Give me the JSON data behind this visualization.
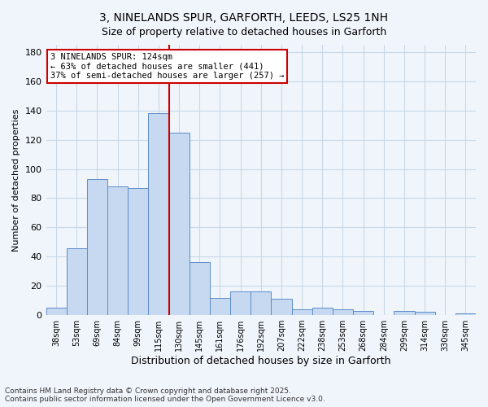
{
  "title_line1": "3, NINELANDS SPUR, GARFORTH, LEEDS, LS25 1NH",
  "title_line2": "Size of property relative to detached houses in Garforth",
  "xlabel": "Distribution of detached houses by size in Garforth",
  "ylabel": "Number of detached properties",
  "categories": [
    "38sqm",
    "53sqm",
    "69sqm",
    "84sqm",
    "99sqm",
    "115sqm",
    "130sqm",
    "145sqm",
    "161sqm",
    "176sqm",
    "192sqm",
    "207sqm",
    "222sqm",
    "238sqm",
    "253sqm",
    "268sqm",
    "284sqm",
    "299sqm",
    "314sqm",
    "330sqm",
    "345sqm"
  ],
  "values": [
    5,
    46,
    93,
    88,
    87,
    138,
    125,
    36,
    12,
    16,
    16,
    11,
    4,
    5,
    4,
    3,
    0,
    3,
    2,
    0,
    1
  ],
  "bar_color": "#c6d9f0",
  "bar_edge_color": "#5b8cc8",
  "vline_x": 6,
  "vline_color": "#cc0000",
  "annotation_text": "3 NINELANDS SPUR: 124sqm\n← 63% of detached houses are smaller (441)\n37% of semi-detached houses are larger (257) →",
  "annotation_box_color": "#ffffff",
  "annotation_box_edge": "#cc0000",
  "ylim": [
    0,
    185
  ],
  "yticks": [
    0,
    20,
    40,
    60,
    80,
    100,
    120,
    140,
    160,
    180
  ],
  "grid_color": "#c8d8e8",
  "footnote": "Contains HM Land Registry data © Crown copyright and database right 2025.\nContains public sector information licensed under the Open Government Licence v3.0.",
  "bg_color": "#f0f5fb"
}
